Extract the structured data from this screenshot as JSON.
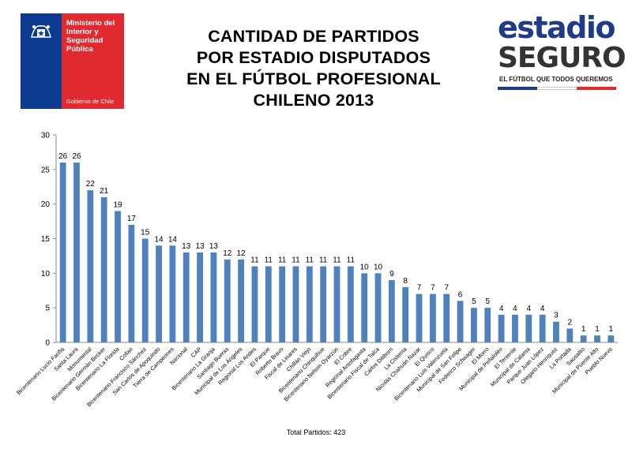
{
  "header": {
    "title_lines": [
      "CANTIDAD DE PARTIDOS",
      "POR ESTADIO DISPUTADOS",
      "EN EL FÚTBOL PROFESIONAL",
      "CHILENO 2013"
    ]
  },
  "gobierno_logo": {
    "line1": "Ministerio del",
    "line2": "Interior y",
    "line3": "Seguridad",
    "line4": "Pública",
    "footer": "Gobierno de Chile",
    "colors": {
      "blue": "#0c3b8f",
      "red": "#e02a2f"
    }
  },
  "estadio_logo": {
    "word1": "estadio",
    "word2": "SEGURO",
    "slogan": "EL FÚTBOL QUE TODOS QUEREMOS"
  },
  "chart_data": {
    "type": "bar",
    "title": "",
    "xlabel": "",
    "ylabel": "",
    "ylim": [
      0,
      30
    ],
    "yticks": [
      0,
      5,
      10,
      15,
      20,
      25,
      30
    ],
    "grid": false,
    "bar_color": "#4f81bd",
    "data_labels": true,
    "categories": [
      "Bicentenario Lucio Fariña",
      "Santa Laura",
      "Monumental",
      "Bicentenario Germán Becker",
      "Bicentenario La Florida",
      "Collao",
      "Bicentenario Francisco Sánchez",
      "San Carlos de Apoquindo",
      "Tierra de Campeones",
      "Nacional",
      "CAP",
      "Bicentenario La Granja",
      "Santiago Bueras",
      "Municipal de Los Ángeles",
      "Regional Los Andes",
      "El Parque",
      "Roberto Bravo",
      "Fiscal de Linares",
      "Chillán Viejo",
      "Bicentenario Chinquihue",
      "Bicentenario Nelson Oyarzún",
      "El Cobre",
      "Regional Antofagasta",
      "Bicentenario Fiscal de Talca",
      "Carlos Dittborn",
      "La Cisterna",
      "Nicolás Chahuán Nazar",
      "El Quisco",
      "Bicentenario Luis Valenzuela",
      "Municipal de San Felipe",
      "Federico Schwager",
      "El Morro",
      "Municipal de Peñalolén",
      "El Teniente",
      "Municipal de Calama",
      "Parque Juan López",
      "Olegario Henríquez",
      "La Portada",
      "Sausalito",
      "Municipal de Puente Alto",
      "Pueblo Nuevo"
    ],
    "values": [
      26,
      26,
      22,
      21,
      19,
      17,
      15,
      14,
      14,
      13,
      13,
      13,
      12,
      12,
      11,
      11,
      11,
      11,
      11,
      11,
      11,
      11,
      10,
      10,
      9,
      8,
      7,
      7,
      7,
      6,
      5,
      5,
      4,
      4,
      4,
      4,
      3,
      2,
      1,
      1,
      1
    ]
  },
  "footer": {
    "total_label": "Total Partidos:  423"
  }
}
